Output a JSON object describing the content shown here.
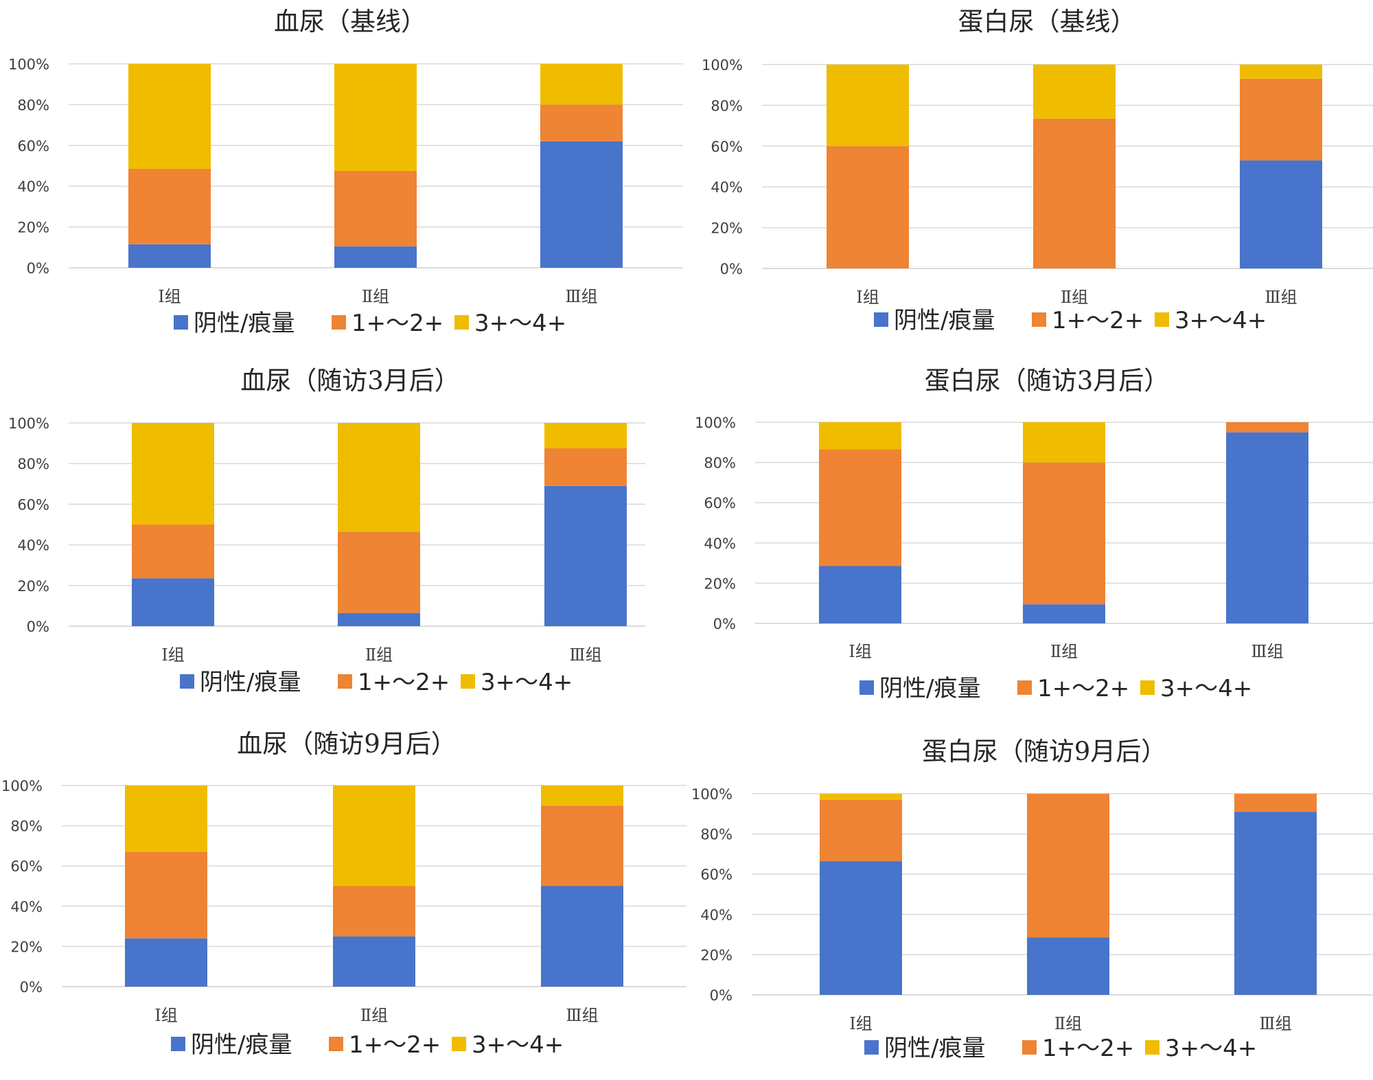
{
  "legend": [
    "阴性/痕量",
    "1+～2+",
    "3+～4+"
  ],
  "colors": [
    "#4874CB",
    "#EE8434",
    "#F0BC00"
  ],
  "chart_data": [
    {
      "type": "bar",
      "stacked": true,
      "title": "血尿（基线）",
      "categories": [
        "Ⅰ组",
        "Ⅱ组",
        "Ⅲ组"
      ],
      "ylim": [
        0,
        100
      ],
      "yticks": [
        "0%",
        "20%",
        "40%",
        "60%",
        "80%",
        "100%"
      ],
      "series": [
        {
          "name": "阴性/痕量",
          "values": [
            11.5,
            10.5,
            62
          ]
        },
        {
          "name": "1+～2+",
          "values": [
            37,
            37,
            18
          ]
        },
        {
          "name": "3+～4+",
          "values": [
            51.5,
            52.5,
            20
          ]
        }
      ]
    },
    {
      "type": "bar",
      "stacked": true,
      "title": "蛋白尿（基线）",
      "categories": [
        "Ⅰ组",
        "Ⅱ组",
        "Ⅲ组"
      ],
      "ylim": [
        0,
        100
      ],
      "yticks": [
        "0%",
        "20%",
        "40%",
        "60%",
        "80%",
        "100%"
      ],
      "series": [
        {
          "name": "阴性/痕量",
          "values": [
            0,
            0,
            53
          ]
        },
        {
          "name": "1+～2+",
          "values": [
            60,
            73.5,
            40
          ]
        },
        {
          "name": "3+～4+",
          "values": [
            40,
            26.5,
            7
          ]
        }
      ]
    },
    {
      "type": "bar",
      "stacked": true,
      "title": "血尿（随访3月后）",
      "categories": [
        "Ⅰ组",
        "Ⅱ组",
        "Ⅲ组"
      ],
      "ylim": [
        0,
        100
      ],
      "yticks": [
        "0%",
        "20%",
        "40%",
        "60%",
        "80%",
        "100%"
      ],
      "series": [
        {
          "name": "阴性/痕量",
          "values": [
            23.5,
            6.5,
            69
          ]
        },
        {
          "name": "1+～2+",
          "values": [
            26.5,
            40,
            18.5
          ]
        },
        {
          "name": "3+～4+",
          "values": [
            50,
            53.5,
            12.5
          ]
        }
      ]
    },
    {
      "type": "bar",
      "stacked": true,
      "title": "蛋白尿（随访3月后）",
      "categories": [
        "Ⅰ组",
        "Ⅱ组",
        "Ⅲ组"
      ],
      "ylim": [
        0,
        100
      ],
      "yticks": [
        "0%",
        "20%",
        "40%",
        "60%",
        "80%",
        "100%"
      ],
      "series": [
        {
          "name": "阴性/痕量",
          "values": [
            28.5,
            9.5,
            95
          ]
        },
        {
          "name": "1+～2+",
          "values": [
            58,
            70.5,
            5
          ]
        },
        {
          "name": "3+～4+",
          "values": [
            13.5,
            20,
            0
          ]
        }
      ]
    },
    {
      "type": "bar",
      "stacked": true,
      "title": "血尿（随访9月后）",
      "categories": [
        "Ⅰ组",
        "Ⅱ组",
        "Ⅲ组"
      ],
      "ylim": [
        0,
        100
      ],
      "yticks": [
        "0%",
        "20%",
        "40%",
        "60%",
        "80%",
        "100%"
      ],
      "series": [
        {
          "name": "阴性/痕量",
          "values": [
            24,
            25,
            50
          ]
        },
        {
          "name": "1+～2+",
          "values": [
            43,
            25,
            40
          ]
        },
        {
          "name": "3+～4+",
          "values": [
            33,
            50,
            10
          ]
        }
      ]
    },
    {
      "type": "bar",
      "stacked": true,
      "title": "蛋白尿（随访9月后）",
      "categories": [
        "Ⅰ组",
        "Ⅱ组",
        "Ⅲ组"
      ],
      "ylim": [
        0,
        100
      ],
      "yticks": [
        "0%",
        "20%",
        "40%",
        "60%",
        "80%",
        "100%"
      ],
      "series": [
        {
          "name": "阴性/痕量",
          "values": [
            66.5,
            28.5,
            91
          ]
        },
        {
          "name": "1+～2+",
          "values": [
            30.5,
            71.5,
            9
          ]
        },
        {
          "name": "3+～4+",
          "values": [
            3,
            0,
            0
          ]
        }
      ]
    }
  ]
}
